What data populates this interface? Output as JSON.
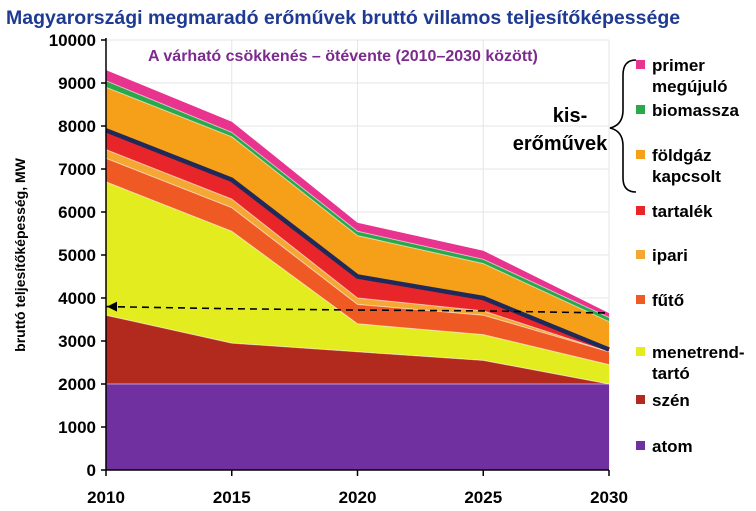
{
  "chart_data": {
    "type": "area",
    "title": "Magyarországi megmaradó erőművek bruttó villamos teljesítőképessége",
    "subtitle": "A várható csökkenés – ötévente (2010–2030 között)",
    "ylabel": "bruttó teljesítőképesség, MW",
    "xlabel": "",
    "x": [
      2010,
      2015,
      2020,
      2025,
      2030
    ],
    "ylim": [
      0,
      10000
    ],
    "yticks": [
      "0",
      "1000",
      "2000",
      "3000",
      "4000",
      "5000",
      "6000",
      "7000",
      "8000",
      "9000",
      "10000"
    ],
    "xticks": [
      "2010",
      "2015",
      "2020",
      "2025",
      "2030"
    ],
    "stacked": true,
    "series": [
      {
        "name": "atom",
        "values": [
          2000,
          2000,
          2000,
          2000,
          2000
        ],
        "color": "#7030a0"
      },
      {
        "name": "szén",
        "values": [
          1600,
          950,
          750,
          550,
          0
        ],
        "color": "#b22a1e"
      },
      {
        "name": "menetrend-tartó",
        "values": [
          3100,
          2600,
          650,
          600,
          450
        ],
        "color": "#e2ec1e"
      },
      {
        "name": "fűtő",
        "values": [
          550,
          550,
          450,
          450,
          300
        ],
        "color": "#ef5a24"
      },
      {
        "name": "ipari",
        "values": [
          200,
          200,
          150,
          100,
          0
        ],
        "color": "#f5a733"
      },
      {
        "name": "tartalék",
        "values": [
          450,
          450,
          500,
          300,
          50
        ],
        "color": "#e8262a"
      },
      {
        "name": "földgáz kapcsolt",
        "values": [
          1000,
          1000,
          950,
          800,
          650
        ],
        "color": "#f6a01a"
      },
      {
        "name": "biomassza",
        "values": [
          150,
          100,
          100,
          100,
          100
        ],
        "color": "#2aa84a"
      },
      {
        "name": "primer megújuló",
        "values": [
          250,
          250,
          200,
          200,
          100
        ],
        "color": "#e8338f"
      }
    ],
    "small_plant_total_line": {
      "values": [
        7900,
        6750,
        4500,
        4000,
        2800
      ],
      "color": "#1f2a5a"
    },
    "dashed_reference_line": {
      "values": [
        3800,
        3750,
        3720,
        3700,
        3650
      ],
      "color": "#000000"
    },
    "legend": {
      "placement": "right",
      "entries": [
        {
          "label_lines": [
            "primer",
            "megújuló"
          ],
          "color": "#e8338f"
        },
        {
          "label_lines": [
            "biomassza"
          ],
          "color": "#2aa84a"
        },
        {
          "label_lines": [
            "földgáz",
            "kapcsolt"
          ],
          "color": "#f6a01a"
        },
        {
          "label_lines": [
            "tartalék"
          ],
          "color": "#e8262a"
        },
        {
          "label_lines": [
            "ipari"
          ],
          "color": "#f5a733"
        },
        {
          "label_lines": [
            "fűtő"
          ],
          "color": "#ef5a24"
        },
        {
          "label_lines": [
            "menetrend-",
            "tartó"
          ],
          "color": "#e2ec1e"
        },
        {
          "label_lines": [
            "szén"
          ],
          "color": "#b22a1e"
        },
        {
          "label_lines": [
            "atom"
          ],
          "color": "#7030a0"
        }
      ]
    },
    "group_annotation": {
      "label_lines": [
        "kis-",
        "erőművek"
      ]
    },
    "colors": {
      "title": "#1f3a93",
      "subtitle": "#7b2a8e",
      "axis": "#000000",
      "grid": "#e6e6e6"
    }
  }
}
